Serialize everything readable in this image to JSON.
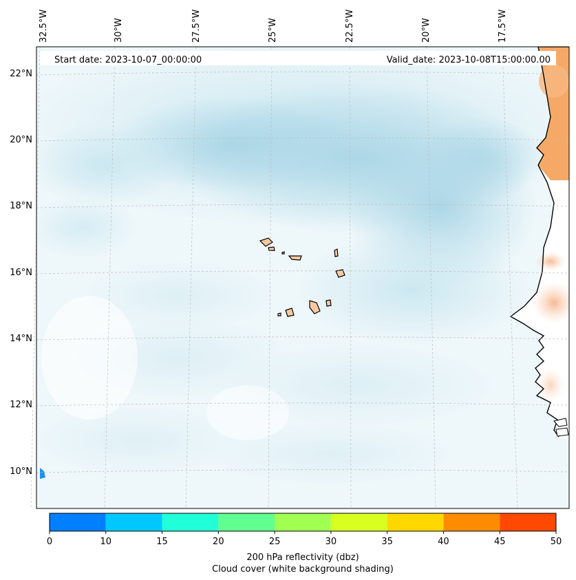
{
  "header": {
    "start_date": "Start date: 2023-10-07_00:00:00",
    "valid_date": "Valid_date: 2023-10-08T15:00:00.00"
  },
  "map": {
    "lon_labels": [
      "32.5°W",
      "30°W",
      "27.5°W",
      "25°W",
      "22.5°W",
      "20°W",
      "17.5°W"
    ],
    "lat_labels": [
      "22°N",
      "20°N",
      "18°N",
      "16°N",
      "14°N",
      "12°N",
      "10°N"
    ],
    "gridlines": true,
    "land_color": "#f6a45e",
    "cloud_color": "#aed8e6"
  },
  "colorbar": {
    "ticks": [
      "0",
      "10",
      "15",
      "20",
      "25",
      "30",
      "35",
      "40",
      "45",
      "50"
    ],
    "colors": [
      "#0080ff",
      "#00c8ff",
      "#20ffd8",
      "#60ff90",
      "#a0ff50",
      "#d8ff20",
      "#ffd800",
      "#ff8c00",
      "#ff4800"
    ],
    "label": "200 hPa reflectivity (dbz)",
    "sublabel": "Cloud cover (white background shading)"
  }
}
